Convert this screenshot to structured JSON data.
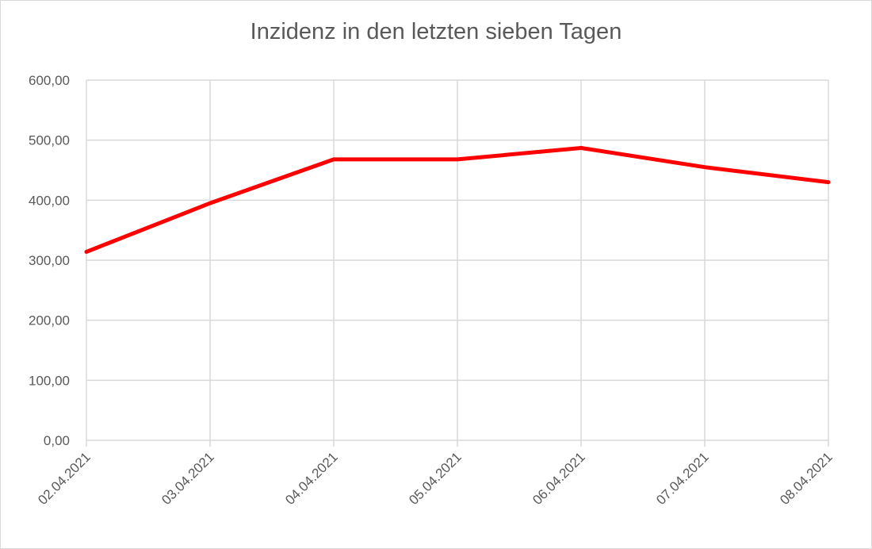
{
  "chart_data": {
    "type": "line",
    "title": "Inzidenz in den letzten sieben Tagen",
    "xlabel": "",
    "ylabel": "",
    "categories": [
      "02.04.2021",
      "03.04.2021",
      "04.04.2021",
      "05.04.2021",
      "06.04.2021",
      "07.04.2021",
      "08.04.2021"
    ],
    "series": [
      {
        "values": [
          314,
          395,
          468,
          468,
          487,
          455,
          430
        ],
        "color": "#ff0000"
      }
    ],
    "ylim": [
      0,
      600
    ],
    "y_ticks": [
      0,
      100,
      200,
      300,
      400,
      500,
      600
    ],
    "y_tick_labels": [
      "0,00",
      "100,00",
      "200,00",
      "300,00",
      "400,00",
      "500,00",
      "600,00"
    ],
    "grid": true,
    "legend": "none",
    "colors": {
      "line": "#ff0000",
      "grid": "#d9d9d9",
      "text": "#595959"
    }
  }
}
